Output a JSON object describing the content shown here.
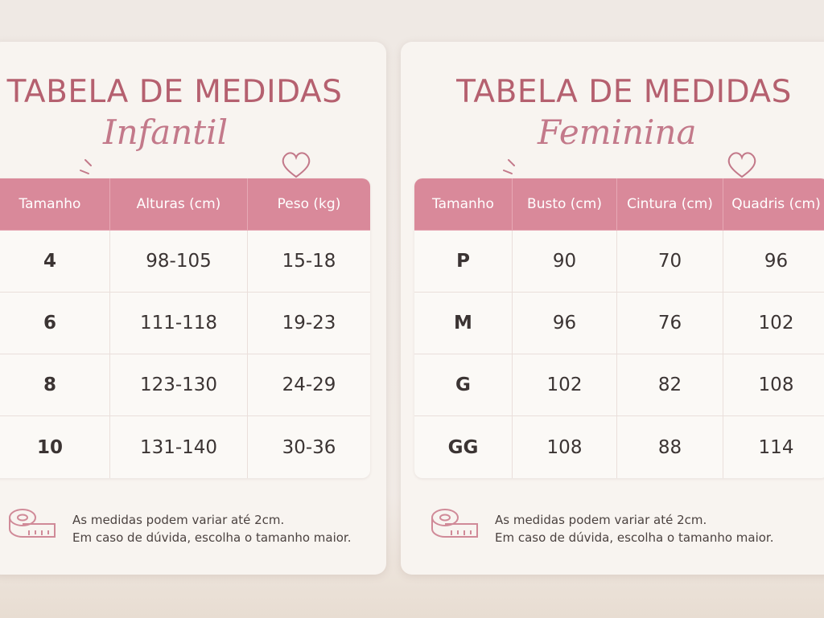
{
  "cards": [
    {
      "title": "TABELA DE MEDIDAS",
      "subtitle": "Infantil",
      "table": {
        "header": [
          "Tamanho",
          "Alturas (cm)",
          "Peso (kg)"
        ],
        "rows": [
          [
            4,
            "98-105",
            "15-18"
          ],
          [
            6,
            "111-118",
            "19-23"
          ],
          [
            8,
            "123-130",
            "24-29"
          ],
          [
            10,
            "131-140",
            "30-36"
          ]
        ]
      },
      "note": [
        "As medidas podem variar até 2cm.",
        "Em caso de dúvida, escolha o tamanho maior."
      ]
    },
    {
      "title": "TABELA DE MEDIDAS",
      "subtitle": "Feminina",
      "table": {
        "header": [
          "Tamanho",
          "Busto (cm)",
          "Cintura (cm)",
          "Quadris (cm)"
        ],
        "rows": [
          [
            "P",
            90,
            70,
            96
          ],
          [
            "M",
            96,
            76,
            102
          ],
          [
            "G",
            102,
            82,
            108
          ],
          [
            "GG",
            108,
            88,
            114
          ]
        ]
      },
      "note": [
        "As medidas podem variar até 2cm.",
        "Em caso de dúvida, escolha o tamanho maior."
      ]
    }
  ]
}
